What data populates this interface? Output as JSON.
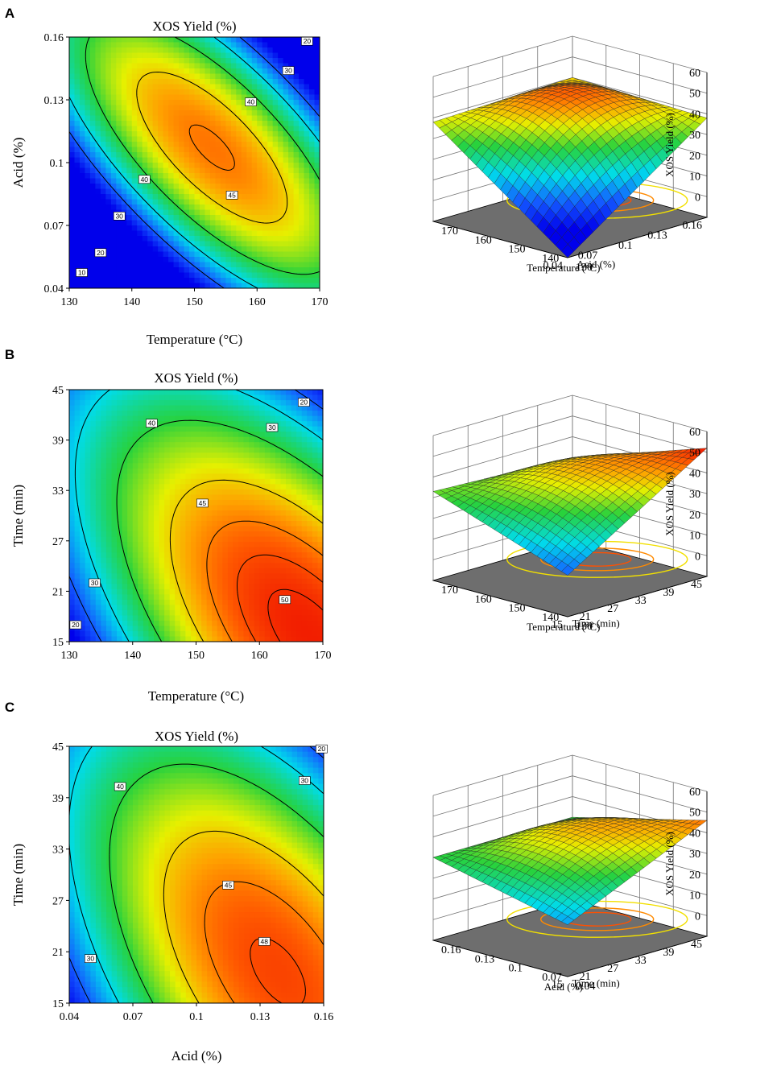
{
  "chart_data": [
    {
      "panel": "A",
      "type": "contour",
      "title": "XOS Yield (%)",
      "xlabel": "Temperature (°C)",
      "ylabel": "Acid (%)",
      "xticks": [
        "130",
        "140",
        "150",
        "160",
        "170"
      ],
      "xlim": [
        130,
        170
      ],
      "yticks": [
        "0.04",
        "0.07",
        "0.1",
        "0.13",
        "0.16"
      ],
      "ylim": [
        0.04,
        0.16
      ],
      "contour_labels": [
        {
          "text": "10",
          "x": 132,
          "y": 0.0475
        },
        {
          "text": "20",
          "x": 135,
          "y": 0.057
        },
        {
          "text": "30",
          "x": 138,
          "y": 0.0745
        },
        {
          "text": "40",
          "x": 142,
          "y": 0.092
        },
        {
          "text": "45",
          "x": 156,
          "y": 0.0845
        },
        {
          "text": "40",
          "x": 159,
          "y": 0.129
        },
        {
          "text": "30",
          "x": 165,
          "y": 0.144
        },
        {
          "text": "20",
          "x": 168,
          "y": 0.158
        }
      ]
    },
    {
      "panel": "A",
      "type": "surface3d",
      "zlabel": "XOS Yield (%)",
      "zticks": [
        "0",
        "10",
        "20",
        "30",
        "40",
        "50",
        "60"
      ],
      "left_axis_label": "Acid (%)",
      "left_ticks": [
        "0.16",
        "0.13",
        "0.1",
        "0.07",
        "0.04"
      ],
      "right_axis_label": "Temperature (°C)",
      "right_ticks": [
        "130",
        "140",
        "150",
        "160",
        "170"
      ],
      "corner_z": {
        "near": -10,
        "left": 38,
        "right": 38,
        "far": 40,
        "center": 45
      }
    },
    {
      "panel": "B",
      "type": "contour",
      "title": "XOS Yield (%)",
      "xlabel": "Temperature (°C)",
      "ylabel": "Time (min)",
      "xticks": [
        "130",
        "140",
        "150",
        "160",
        "170"
      ],
      "xlim": [
        130,
        170
      ],
      "yticks": [
        "15",
        "21",
        "27",
        "33",
        "39",
        "45"
      ],
      "ylim": [
        15,
        45
      ],
      "contour_labels": [
        {
          "text": "20",
          "x": 131,
          "y": 17
        },
        {
          "text": "30",
          "x": 134,
          "y": 22
        },
        {
          "text": "40",
          "x": 143,
          "y": 41
        },
        {
          "text": "45",
          "x": 151,
          "y": 31.5
        },
        {
          "text": "50",
          "x": 164,
          "y": 20
        },
        {
          "text": "30",
          "x": 162,
          "y": 40.5
        },
        {
          "text": "20",
          "x": 167,
          "y": 43.5
        }
      ]
    },
    {
      "panel": "B",
      "type": "surface3d",
      "zlabel": "XOS Yield (%)",
      "zticks": [
        "0",
        "10",
        "20",
        "30",
        "40",
        "50",
        "60"
      ],
      "left_axis_label": "Time (min)",
      "left_ticks": [
        "45",
        "39",
        "33",
        "27",
        "21",
        "15"
      ],
      "right_axis_label": "Temperature (°C)",
      "right_ticks": [
        "130",
        "140",
        "150",
        "160",
        "170"
      ],
      "corner_z": {
        "near": 10,
        "left": 33,
        "right": 52,
        "far": 30,
        "center": 42
      }
    },
    {
      "panel": "C",
      "type": "contour",
      "title": "XOS Yield (%)",
      "xlabel": "Acid (%)",
      "ylabel": "Time (min)",
      "xticks": [
        "0.04",
        "0.07",
        "0.1",
        "0.13",
        "0.16"
      ],
      "xlim": [
        0.04,
        0.16
      ],
      "yticks": [
        "15",
        "21",
        "27",
        "33",
        "39",
        "45"
      ],
      "ylim": [
        15,
        45
      ],
      "contour_labels": [
        {
          "text": "30",
          "x": 0.05,
          "y": 20.2
        },
        {
          "text": "40",
          "x": 0.064,
          "y": 40.3
        },
        {
          "text": "45",
          "x": 0.115,
          "y": 28.8
        },
        {
          "text": "48",
          "x": 0.132,
          "y": 22.2
        },
        {
          "text": "30",
          "x": 0.151,
          "y": 41
        },
        {
          "text": "20",
          "x": 0.159,
          "y": 44.7
        }
      ]
    },
    {
      "panel": "C",
      "type": "surface3d",
      "zlabel": "XOS Yield (%)",
      "zticks": [
        "0",
        "10",
        "20",
        "30",
        "40",
        "50",
        "60"
      ],
      "left_axis_label": "Time (min)",
      "left_ticks": [
        "45",
        "39",
        "33",
        "27",
        "21",
        "15"
      ],
      "right_axis_label": "Acid (%)",
      "right_ticks": [
        "0.04",
        "0.07",
        "0.1",
        "0.13",
        "0.16"
      ],
      "corner_z": {
        "near": 15,
        "left": 30,
        "right": 46,
        "far": 30,
        "center": 42
      }
    }
  ]
}
